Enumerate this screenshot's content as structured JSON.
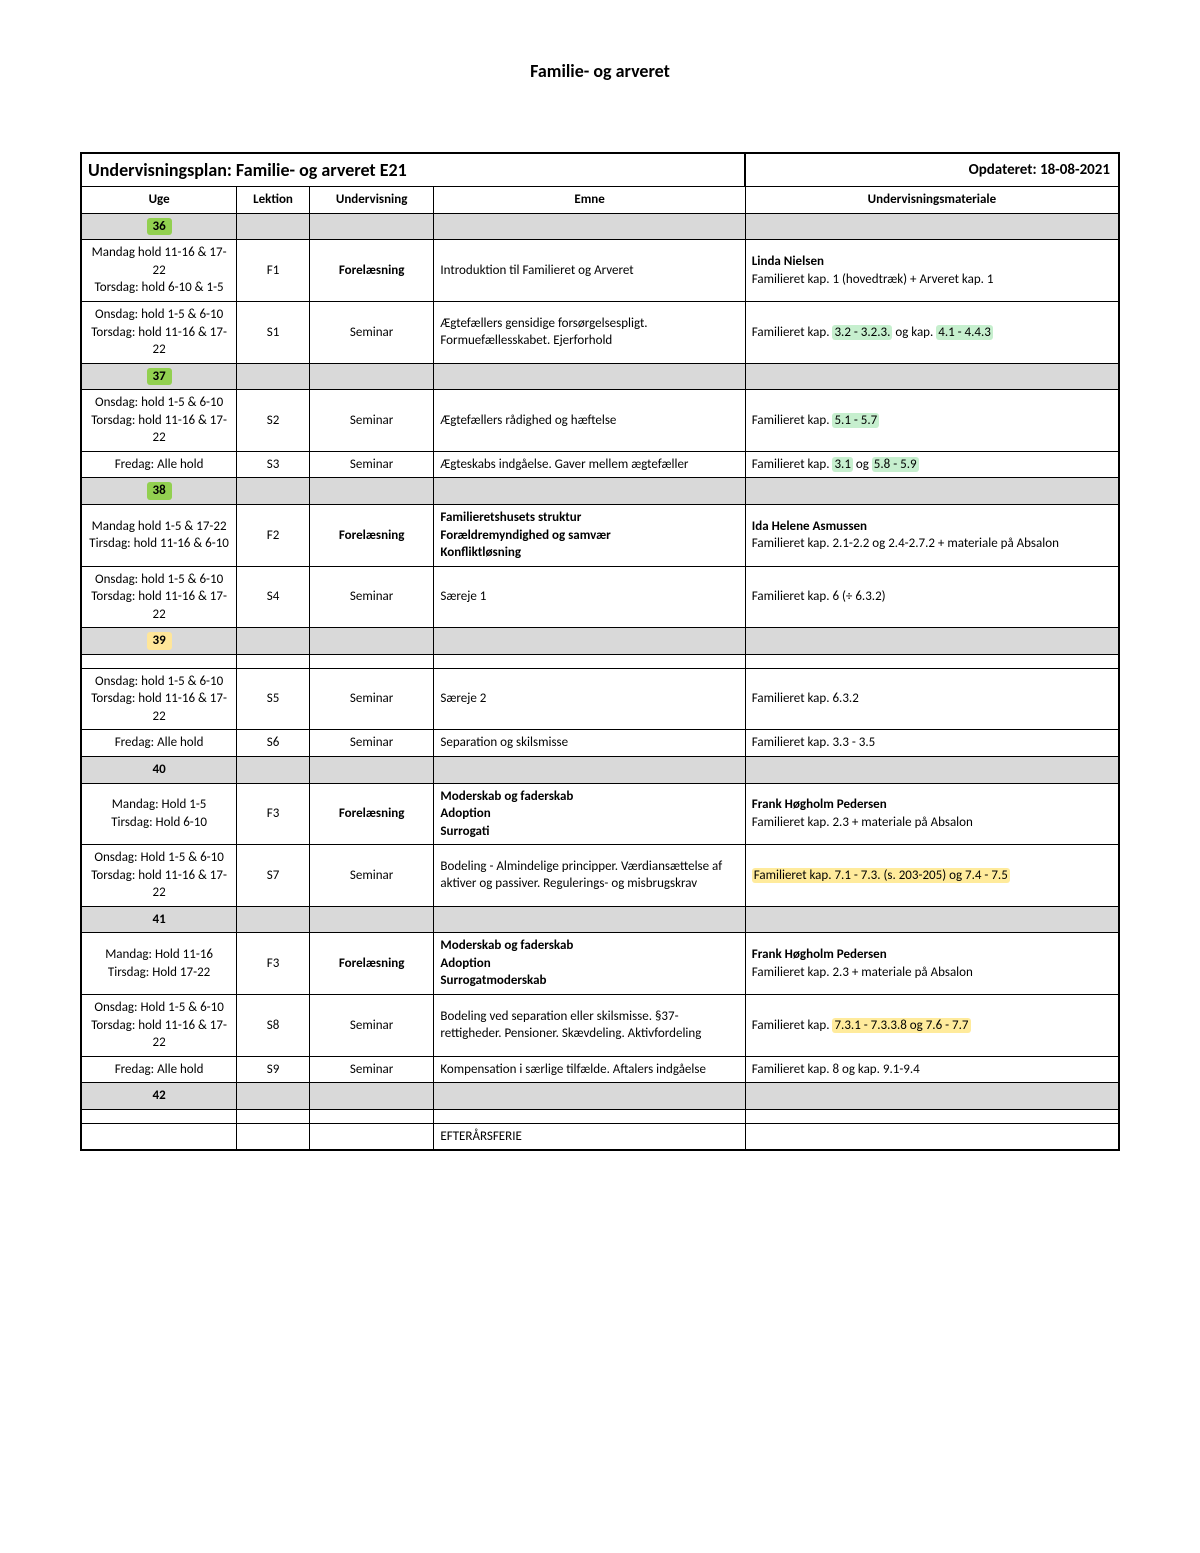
{
  "colors": {
    "week_green": "#92d050",
    "week_yellow": "#ffe699",
    "hl_green": "#c6efce",
    "hl_yellow": "#ffeb9c",
    "grey": "#d9d9d9"
  },
  "doc_title": "Familie- og arveret",
  "plan_title": "Undervisningsplan: Familie- og arveret E21",
  "updated": "Opdateret: 18-08-2021",
  "headers": {
    "uge": "Uge",
    "lektion": "Lektion",
    "undervisning": "Undervisning",
    "emne": "Emne",
    "materiale": "Undervisningsmateriale"
  },
  "weeks": {
    "w36": "36",
    "w37": "37",
    "w38": "38",
    "w39": "39",
    "w40": "40",
    "w41": "41",
    "w42": "42"
  },
  "rows": {
    "r1": {
      "uge": "Mandag hold 11-16 & 17-22\nTorsdag: hold 6-10 & 1-5",
      "lek": "F1",
      "und": "Forelæsning",
      "emne": "Introduktion til Familieret og Arveret",
      "mat_name": "Linda Nielsen",
      "mat_rest": "Familieret kap. 1 (hovedtræk) + Arveret kap. 1"
    },
    "r2": {
      "uge": "Onsdag: hold 1-5 & 6-10\nTorsdag: hold 11-16 & 17-22",
      "lek": "S1",
      "und": "Seminar",
      "emne": "Ægtefællers gensidige forsørgelsespligt. Formuefællesskabet. Ejerforhold",
      "mat_pre": "Familieret kap. ",
      "mat_hl1": "3.2 - 3.2.3.",
      "mat_mid": " og kap. ",
      "mat_hl2": "4.1 - 4.4.3"
    },
    "r3": {
      "uge": "Onsdag: hold 1-5 & 6-10\nTorsdag: hold 11-16 & 17-22",
      "lek": "S2",
      "und": "Seminar",
      "emne": "Ægtefællers rådighed og hæftelse",
      "mat_pre": "Familieret kap. ",
      "mat_hl1": "5.1 - 5.7"
    },
    "r4": {
      "uge": "Fredag: Alle hold",
      "lek": "S3",
      "und": "Seminar",
      "emne": "Ægteskabs indgåelse. Gaver mellem ægtefæller",
      "mat_pre": "Familieret kap. ",
      "mat_hl1": "3.1",
      "mat_mid": " og ",
      "mat_hl2": "5.8 - 5.9"
    },
    "r5": {
      "uge": "Mandag hold 1-5 & 17-22\nTirsdag: hold 11-16 & 6-10",
      "lek": "F2",
      "und": "Forelæsning",
      "emne": "Familieretshusets struktur\nForældremyndighed og samvær\nKonfliktløsning",
      "mat_name": "Ida Helene Asmussen",
      "mat_rest": "Familieret kap. 2.1-2.2 og 2.4-2.7.2 + materiale på Absalon"
    },
    "r6": {
      "uge": "Onsdag: hold 1-5 & 6-10\nTorsdag: hold 11-16 & 17-22",
      "lek": "S4",
      "und": "Seminar",
      "emne": "Særeje 1",
      "mat": "Familieret kap. 6 (÷ 6.3.2)"
    },
    "r7": {
      "uge": "Onsdag: hold 1-5 & 6-10\nTorsdag: hold 11-16 & 17-22",
      "lek": "S5",
      "und": "Seminar",
      "emne": "Særeje 2",
      "mat": "Familieret kap. 6.3.2"
    },
    "r8": {
      "uge": "Fredag: Alle hold",
      "lek": "S6",
      "und": "Seminar",
      "emne": "Separation og skilsmisse",
      "mat": "Familieret kap. 3.3 - 3.5"
    },
    "r9": {
      "uge": "Mandag: Hold 1-5\nTirsdag: Hold 6-10",
      "lek": "F3",
      "und": "Forelæsning",
      "emne": "Moderskab og faderskab\nAdoption\nSurrogati",
      "mat_name": "Frank Høgholm Pedersen",
      "mat_rest": "Familieret kap. 2.3 + materiale på Absalon"
    },
    "r10": {
      "uge": "Onsdag: Hold 1-5 & 6-10\nTorsdag: hold 11-16 & 17-22",
      "lek": "S7",
      "und": "Seminar",
      "emne": "Bodeling - Almindelige principper. Værdiansættelse af aktiver og passiver. Regulerings- og misbrugskrav",
      "mat_hl": "Familieret kap. 7.1 - 7.3. (s. 203-205) og 7.4 - 7.5"
    },
    "r11": {
      "uge": "Mandag: Hold 11-16\nTirsdag: Hold 17-22",
      "lek": "F3",
      "und": "Forelæsning",
      "emne": "Moderskab og faderskab\nAdoption\nSurrogatmoderskab",
      "mat_name": "Frank Høgholm Pedersen",
      "mat_rest": "Familieret kap. 2.3 + materiale på Absalon"
    },
    "r12": {
      "uge": "Onsdag: Hold 1-5 & 6-10\nTorsdag: hold 11-16 & 17-22",
      "lek": "S8",
      "und": "Seminar",
      "emne": "Bodeling ved separation eller skilsmisse. §37-rettigheder. Pensioner. Skævdeling. Aktivfordeling",
      "mat_pre": "Familieret kap. ",
      "mat_hl": "7.3.1 - 7.3.3.8 og 7.6 - 7.7"
    },
    "r13": {
      "uge": "Fredag: Alle hold",
      "lek": "S9",
      "und": "Seminar",
      "emne": "Kompensation i særlige tilfælde. Aftalers indgåelse",
      "mat": "Familieret kap. 8 og kap. 9.1-9.4"
    },
    "r14": {
      "emne": "EFTERÅRSFERIE"
    }
  }
}
